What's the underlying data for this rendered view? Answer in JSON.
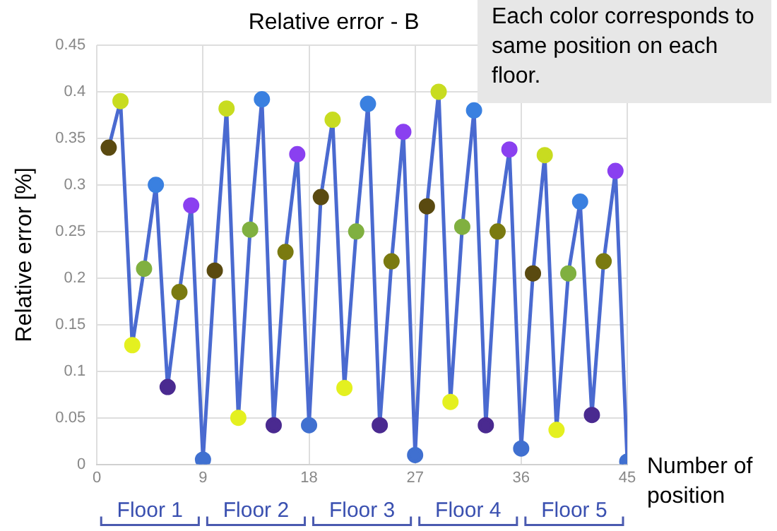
{
  "chart_data": {
    "type": "line",
    "title": "Relative error - B",
    "xlabel": "Number of position",
    "ylabel": "Relative error [%]",
    "x": [
      1,
      2,
      3,
      4,
      5,
      6,
      7,
      8,
      9,
      10,
      11,
      12,
      13,
      14,
      15,
      16,
      17,
      18,
      19,
      20,
      21,
      22,
      23,
      24,
      25,
      26,
      27,
      28,
      29,
      30,
      31,
      32,
      33,
      34,
      35,
      36,
      37,
      38,
      39,
      40,
      41,
      42,
      43,
      44,
      45
    ],
    "series": [
      {
        "color": "#4a6ad0",
        "values": [
          0.34,
          0.39,
          0.128,
          0.21,
          0.3,
          0.083,
          0.185,
          0.278,
          0.005,
          0.208,
          0.382,
          0.05,
          0.252,
          0.392,
          0.042,
          0.228,
          0.333,
          0.042,
          0.287,
          0.37,
          0.082,
          0.25,
          0.387,
          0.042,
          0.218,
          0.357,
          0.01,
          0.277,
          0.4,
          0.067,
          0.255,
          0.38,
          0.042,
          0.25,
          0.338,
          0.017,
          0.205,
          0.332,
          0.037,
          0.205,
          0.282,
          0.053,
          0.218,
          0.315,
          0.003
        ],
        "colors": [
          "#5a4a10",
          "#c8dc20",
          "#e4f020",
          "#80b040",
          "#3a80e0",
          "#4a2a90",
          "#7a7a10",
          "#8a40f0",
          "#4070d0",
          "#5a4a10",
          "#c8dc20",
          "#e4f020",
          "#80b040",
          "#3a80e0",
          "#4a2a90",
          "#7a7a10",
          "#8a40f0",
          "#4070d0",
          "#5a4a10",
          "#c8dc20",
          "#e4f020",
          "#80b040",
          "#3a80e0",
          "#4a2a90",
          "#7a7a10",
          "#8a40f0",
          "#4070d0",
          "#5a4a10",
          "#c8dc20",
          "#e4f020",
          "#80b040",
          "#3a80e0",
          "#4a2a90",
          "#7a7a10",
          "#8a40f0",
          "#4070d0",
          "#5a4a10",
          "#c8dc20",
          "#e4f020",
          "#80b040",
          "#3a80e0",
          "#4a2a90",
          "#7a7a10",
          "#8a40f0",
          "#4070d0"
        ]
      }
    ],
    "xlim": [
      0,
      45
    ],
    "xticks": [
      0,
      9,
      18,
      27,
      36,
      45
    ],
    "ylim": [
      0,
      0.45
    ],
    "yticks": [
      0,
      0.05,
      0.1,
      0.15,
      0.2,
      0.25,
      0.3,
      0.35,
      0.4,
      0.45
    ],
    "grid": true,
    "legend": false,
    "marker": "circle",
    "line_style": "solid",
    "annotations": [
      "Each color corresponds to same position on each floor.",
      "Floor 1",
      "Floor 2",
      "Floor 3",
      "Floor 4",
      "Floor 5"
    ]
  }
}
